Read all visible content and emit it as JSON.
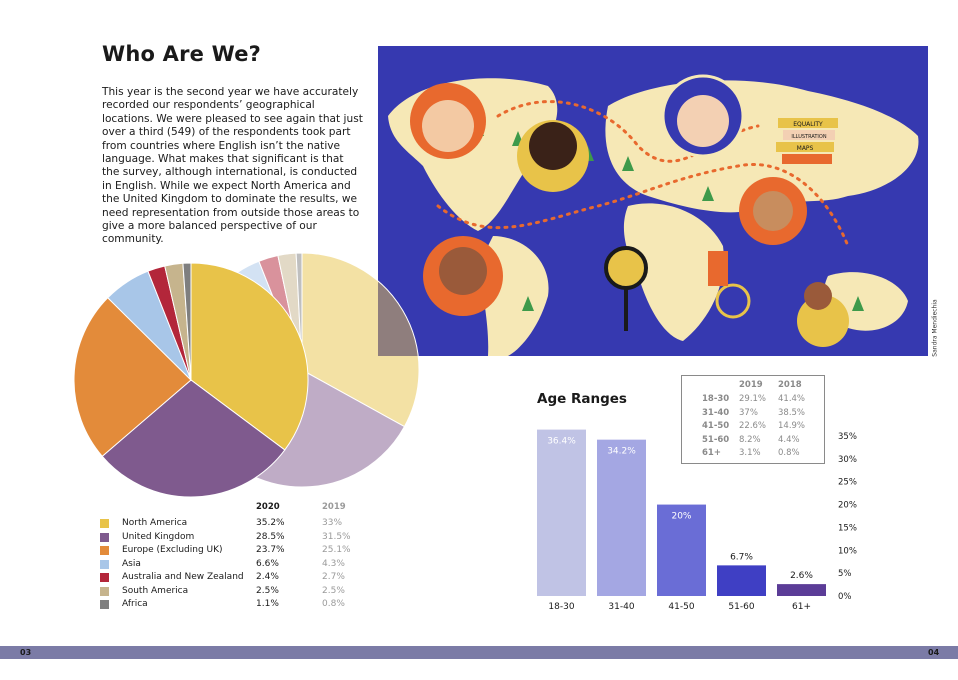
{
  "left_page": {
    "title": "Who Are We?",
    "intro": "This year is the second year we have accurately recorded our respondents’ geographical locations. We were pleased to see again that just over a third (549) of the respondents took part from countries where English isn’t the native language. What makes that significant is that the survey, although international, is conducted in English. While we expect North America and the United Kingdom to dominate the results, we need representation from outside those areas to give a more balanced perspective of our community.",
    "page_number": "03"
  },
  "right_page": {
    "illustration_credit": "Sandra Mendiechia",
    "illustration_signs": [
      "EQUALITY",
      "ILLUSTRATION",
      "MAPS"
    ],
    "page_number": "04"
  },
  "region_legend": {
    "header_2020": "2020",
    "header_2019": "2019",
    "rows": [
      {
        "label": "North America",
        "v2020": "35.2%",
        "v2019": "33%",
        "color": "#e8c349"
      },
      {
        "label": "United Kingdom",
        "v2020": "28.5%",
        "v2019": "31.5%",
        "color": "#7f5a8e"
      },
      {
        "label": "Europe (Excluding UK)",
        "v2020": "23.7%",
        "v2019": "25.1%",
        "color": "#e38b3a"
      },
      {
        "label": "Asia",
        "v2020": "6.6%",
        "v2019": "4.3%",
        "color": "#a8c6e8"
      },
      {
        "label": "Australia and New Zealand",
        "v2020": "2.4%",
        "v2019": "2.7%",
        "color": "#b3263a"
      },
      {
        "label": "South America",
        "v2020": "2.5%",
        "v2019": "2.5%",
        "color": "#c6b48d"
      },
      {
        "label": "Africa",
        "v2020": "1.1%",
        "v2019": "0.8%",
        "color": "#7f7f7f"
      }
    ]
  },
  "age_table": {
    "headers": [
      "2019",
      "2018"
    ],
    "rows": [
      {
        "range": "18-30",
        "v2019": "29.1%",
        "v2018": "41.4%"
      },
      {
        "range": "31-40",
        "v2019": "37%",
        "v2018": "38.5%"
      },
      {
        "range": "41-50",
        "v2019": "22.6%",
        "v2018": "14.9%"
      },
      {
        "range": "51-60",
        "v2019": "8.2%",
        "v2018": "4.4%"
      },
      {
        "range": "61+",
        "v2019": "3.1%",
        "v2018": "0.8%"
      }
    ]
  },
  "chart_data": [
    {
      "type": "pie",
      "series": [
        {
          "name": "2020",
          "categories": [
            "North America",
            "United Kingdom",
            "Europe (Excluding UK)",
            "Asia",
            "Australia and New Zealand",
            "South America",
            "Africa"
          ],
          "values": [
            35.2,
            28.5,
            23.7,
            6.6,
            2.4,
            2.5,
            1.1
          ]
        },
        {
          "name": "2019",
          "categories": [
            "North America",
            "United Kingdom",
            "Europe (Excluding UK)",
            "Asia",
            "Australia and New Zealand",
            "South America",
            "Africa"
          ],
          "values": [
            33,
            31.5,
            25.1,
            4.3,
            2.7,
            2.5,
            0.8
          ]
        }
      ],
      "colors": [
        "#e8c349",
        "#7f5a8e",
        "#e38b3a",
        "#a8c6e8",
        "#b3263a",
        "#c6b48d",
        "#7f7f7f"
      ],
      "title": "",
      "legend": "below"
    },
    {
      "type": "bar",
      "title": "Age Ranges",
      "categories": [
        "18-30",
        "31-40",
        "41-50",
        "51-60",
        "61+"
      ],
      "values": [
        36.4,
        34.2,
        20,
        6.7,
        2.6
      ],
      "data_labels": [
        "36.4%",
        "34.2%",
        "20%",
        "6.7%",
        "2.6%"
      ],
      "colors": [
        "#c0c3e5",
        "#a4a7e3",
        "#6a6dd6",
        "#3f3fc4",
        "#5b3c97"
      ],
      "ylim": [
        0,
        35
      ],
      "yticks": [
        "0%",
        "5%",
        "10%",
        "15%",
        "20%",
        "25%",
        "30%",
        "35%"
      ],
      "ytick_values": [
        0,
        5,
        10,
        15,
        20,
        25,
        30,
        35
      ],
      "yaxis_position": "right",
      "grid": false
    }
  ]
}
